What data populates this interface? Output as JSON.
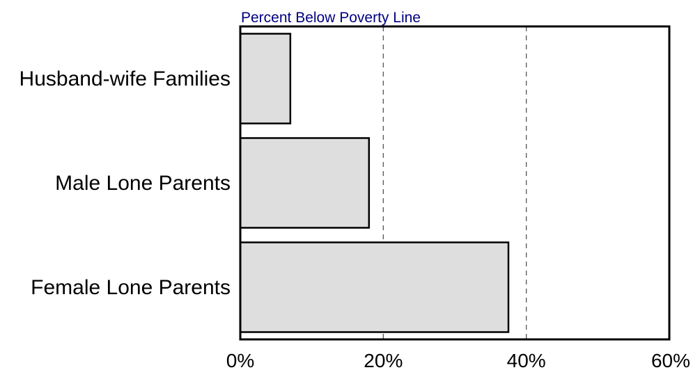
{
  "chart_data": {
    "type": "bar",
    "orientation": "horizontal",
    "title": "",
    "xlabel": "Percent Below Poverty Line",
    "ylabel": "",
    "categories": [
      "Husband-wife Families",
      "Male Lone Parents",
      "Female Lone Parents"
    ],
    "values": [
      7,
      18,
      37.5
    ],
    "xlim": [
      0,
      60
    ],
    "xticks": [
      0,
      20,
      40,
      60
    ],
    "xtick_labels": [
      "0%",
      "20%",
      "40%",
      "60%"
    ],
    "gridlines": "vertical dashed at 20% and 40%",
    "legend": "none",
    "colors": {
      "bar_fill": "#dedede",
      "bar_stroke": "#000000",
      "axis_title": "#000080",
      "grid": "#555555"
    }
  }
}
